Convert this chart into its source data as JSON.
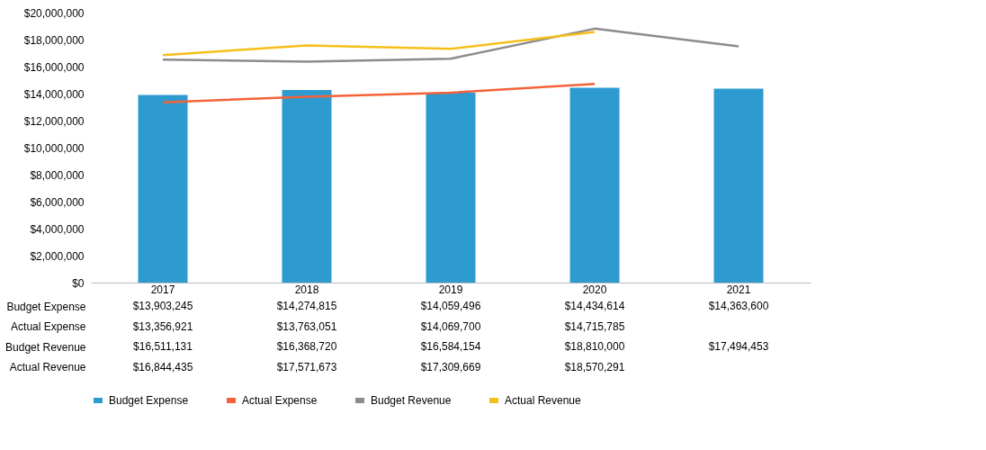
{
  "chart_data": {
    "type": "bar",
    "categories": [
      "2017",
      "2018",
      "2019",
      "2020",
      "2021"
    ],
    "series": [
      {
        "name": "Budget Expense",
        "type": "bar",
        "color": "#2e9bd0",
        "values": [
          13903245,
          14274815,
          14059496,
          14434614,
          14363600
        ],
        "value_labels": [
          "$13,903,245",
          "$14,274,815",
          "$14,059,496",
          "$14,434,614",
          "$14,363,600"
        ]
      },
      {
        "name": "Actual Expense",
        "type": "line",
        "color": "#f4623a",
        "values": [
          13356921,
          13763051,
          14069700,
          14715785,
          null
        ],
        "value_labels": [
          "$13,356,921",
          "$13,763,051",
          "$14,069,700",
          "$14,715,785",
          null
        ]
      },
      {
        "name": "Budget Revenue",
        "type": "line",
        "color": "#8c8c8c",
        "values": [
          16511131,
          16368720,
          16584154,
          18810000,
          17494453
        ],
        "value_labels": [
          "$16,511,131",
          "$16,368,720",
          "$16,584,154",
          "$18,810,000",
          "$17,494,453"
        ]
      },
      {
        "name": "Actual Revenue",
        "type": "line",
        "color": "#f5bf1a",
        "values": [
          16844435,
          17571673,
          17309669,
          18570291,
          null
        ],
        "value_labels": [
          "$16,844,435",
          "$17,571,673",
          "$17,309,669",
          "$18,570,291",
          null
        ]
      }
    ],
    "ylim": [
      0,
      20000000
    ],
    "yticks": [
      {
        "value": 0,
        "label": "$0"
      },
      {
        "value": 2000000,
        "label": "$2,000,000"
      },
      {
        "value": 4000000,
        "label": "$4,000,000"
      },
      {
        "value": 6000000,
        "label": "$6,000,000"
      },
      {
        "value": 8000000,
        "label": "$8,000,000"
      },
      {
        "value": 10000000,
        "label": "$10,000,000"
      },
      {
        "value": 12000000,
        "label": "$12,000,000"
      },
      {
        "value": 14000000,
        "label": "$14,000,000"
      },
      {
        "value": 16000000,
        "label": "$16,000,000"
      },
      {
        "value": 18000000,
        "label": "$18,000,000"
      },
      {
        "value": 20000000,
        "label": "$20,000,000"
      }
    ],
    "grid": false,
    "legend": "bottom",
    "marker": "none",
    "line_style": "solid"
  }
}
